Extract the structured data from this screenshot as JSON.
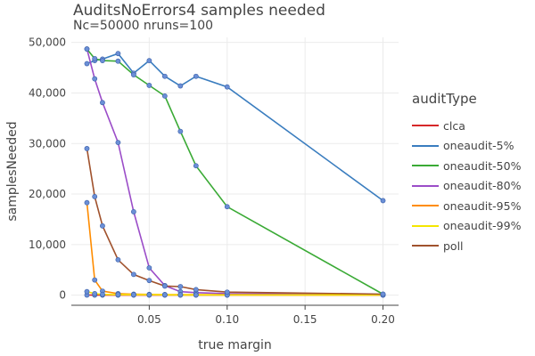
{
  "chart_data": {
    "type": "line",
    "title": "AuditsNoErrors4 samples needed",
    "subtitle": "Nc=50000 nruns=100",
    "xlabel": "true margin",
    "ylabel": "samplesNeeded",
    "xlim": [
      0,
      0.21
    ],
    "ylim": [
      -2000,
      51000
    ],
    "xticks": [
      0.05,
      0.1,
      0.15,
      0.2
    ],
    "xtick_labels": [
      "0.05",
      "0.10",
      "0.15",
      "0.20"
    ],
    "yticks": [
      0,
      10000,
      20000,
      30000,
      40000,
      50000
    ],
    "ytick_labels": [
      "0",
      "10,000",
      "20,000",
      "30,000",
      "40,000",
      "50,000"
    ],
    "grid": true,
    "legend_title": "auditType",
    "legend_position": "right",
    "x": [
      0.01,
      0.015,
      0.02,
      0.03,
      0.04,
      0.05,
      0.06,
      0.07,
      0.08,
      0.1,
      0.2
    ],
    "series": [
      {
        "name": "clca",
        "color": "#d62728",
        "values": [
          20,
          15,
          12,
          9,
          7,
          6,
          5,
          4,
          4,
          3,
          2
        ]
      },
      {
        "name": "oneaudit-5%",
        "color": "#3a7dbf",
        "values": [
          45800,
          46400,
          46700,
          47800,
          43900,
          46400,
          43300,
          41400,
          43300,
          41200,
          18700
        ]
      },
      {
        "name": "oneaudit-50%",
        "color": "#3aaa35",
        "values": [
          48700,
          46800,
          46400,
          46300,
          43600,
          41500,
          39400,
          32400,
          25600,
          17500,
          200
        ]
      },
      {
        "name": "oneaudit-80%",
        "color": "#9b4dc8",
        "values": [
          48700,
          42800,
          38100,
          30200,
          16500,
          5400,
          1900,
          700,
          500,
          300,
          150
        ]
      },
      {
        "name": "oneaudit-95%",
        "color": "#ff8c00",
        "values": [
          18300,
          3000,
          800,
          300,
          200,
          150,
          120,
          100,
          90,
          80,
          60
        ]
      },
      {
        "name": "oneaudit-99%",
        "color": "#f5e600",
        "values": [
          700,
          300,
          150,
          100,
          80,
          70,
          60,
          50,
          50,
          40,
          30
        ]
      },
      {
        "name": "poll",
        "color": "#a0522d",
        "values": [
          29000,
          19500,
          13700,
          7000,
          4100,
          2900,
          1800,
          1700,
          1100,
          600,
          200
        ]
      }
    ]
  }
}
